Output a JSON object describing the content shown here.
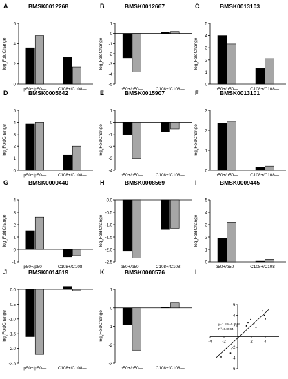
{
  "chart_data": [
    {
      "letter": "A",
      "type": "bar",
      "title": "BMSK0012268",
      "ylabel": "log2FoldChange",
      "categories": [
        "p50+/p50—",
        "C108+/C108—"
      ],
      "series": [
        {
          "values": [
            3.6,
            4.8
          ]
        },
        {
          "values": [
            2.65,
            1.7
          ]
        }
      ],
      "ylim": [
        0,
        6
      ],
      "yticks": [
        0,
        2,
        4,
        6
      ],
      "grid": false
    },
    {
      "letter": "B",
      "type": "bar",
      "title": "BMSK0012667",
      "ylabel": "log2FoldChange",
      "categories": [
        "p50+/p50—",
        "C108+/C108—"
      ],
      "series": [
        {
          "values": [
            -2.4,
            -3.8
          ]
        },
        {
          "values": [
            0.15,
            0.2
          ]
        }
      ],
      "ylim": [
        -5,
        1
      ],
      "yticks": [
        1,
        0,
        -1,
        -2,
        -3,
        -4,
        -5
      ],
      "grid": false
    },
    {
      "letter": "C",
      "type": "bar",
      "title": "BMSK0013103",
      "ylabel": "log2FoldChange",
      "categories": [
        "p50+/p50—",
        "C108+/C108—"
      ],
      "series": [
        {
          "values": [
            4.0,
            3.3
          ]
        },
        {
          "values": [
            1.3,
            2.1
          ]
        }
      ],
      "ylim": [
        0,
        5
      ],
      "yticks": [
        0,
        1,
        2,
        3,
        4,
        5
      ],
      "grid": false
    },
    {
      "letter": "D",
      "type": "bar",
      "title": "BMSK0005642",
      "ylabel": "log2FoldChange",
      "categories": [
        "p50+/p50—",
        "C108+/C108—"
      ],
      "series": [
        {
          "values": [
            3.85,
            4.0
          ]
        },
        {
          "values": [
            1.25,
            2.0
          ]
        }
      ],
      "ylim": [
        0,
        5
      ],
      "yticks": [
        0,
        1,
        2,
        3,
        4,
        5
      ],
      "grid": false
    },
    {
      "letter": "E",
      "type": "bar",
      "title": "BMSK0015907",
      "ylabel": "log2FoldChange",
      "categories": [
        "p50+/p50—",
        "C108+/C108—"
      ],
      "series": [
        {
          "values": [
            -1.05,
            -3.05
          ]
        },
        {
          "values": [
            -0.8,
            -0.55
          ]
        }
      ],
      "ylim": [
        -4,
        1
      ],
      "yticks": [
        1,
        0,
        -1,
        -2,
        -3,
        -4
      ],
      "grid": false
    },
    {
      "letter": "F",
      "type": "bar",
      "title": "BMSK0013101",
      "ylabel": "log2FoldChange",
      "categories": [
        "p50+/p50—",
        "C108+/C108—"
      ],
      "series": [
        {
          "values": [
            2.35,
            2.45
          ]
        },
        {
          "values": [
            0.15,
            0.2
          ]
        }
      ],
      "ylim": [
        0,
        3
      ],
      "yticks": [
        0,
        1,
        2,
        3
      ],
      "grid": false
    },
    {
      "letter": "G",
      "type": "bar",
      "title": "BMSK0000440",
      "ylabel": "log2FoldChange",
      "categories": [
        "p50+/p50—",
        "C108+/C108—"
      ],
      "series": [
        {
          "values": [
            1.5,
            2.6
          ]
        },
        {
          "values": [
            -0.6,
            -0.5
          ]
        }
      ],
      "ylim": [
        -1,
        4
      ],
      "yticks": [
        -1,
        0,
        1,
        2,
        3,
        4
      ],
      "grid": false
    },
    {
      "letter": "H",
      "type": "bar",
      "title": "BMSK0008569",
      "ylabel": "log2FoldChange",
      "categories": [
        "p50+/p50—",
        "C108+/C108—"
      ],
      "series": [
        {
          "values": [
            -2.05,
            -2.35
          ]
        },
        {
          "values": [
            -1.2,
            -1.15
          ]
        }
      ],
      "ylim": [
        -2.5,
        0
      ],
      "yticks": [
        0,
        -0.5,
        -1.0,
        -1.5,
        -2.0,
        -2.5
      ],
      "grid": false
    },
    {
      "letter": "I",
      "type": "bar",
      "title": "BMSK0009445",
      "ylabel": "log2FoldChange",
      "categories": [
        "p50+/p50—",
        "C108+/C108—"
      ],
      "series": [
        {
          "values": [
            1.9,
            3.2
          ]
        },
        {
          "values": [
            0.05,
            0.2
          ]
        }
      ],
      "ylim": [
        0,
        5
      ],
      "yticks": [
        0,
        1,
        2,
        3,
        4,
        5
      ],
      "grid": false
    },
    {
      "letter": "J",
      "type": "bar",
      "title": "BMSK0014619",
      "ylabel": "log2FoldChange",
      "categories": [
        "p50+/p50—",
        "C108+/C108—"
      ],
      "series": [
        {
          "values": [
            -1.6,
            -2.2
          ]
        },
        {
          "values": [
            0.1,
            -0.05
          ]
        }
      ],
      "ylim": [
        -2.5,
        0
      ],
      "yticks": [
        0,
        -0.5,
        -1.0,
        -1.5,
        -2.0,
        -2.5
      ],
      "grid": false
    },
    {
      "letter": "K",
      "type": "bar",
      "title": "BMSK0000576",
      "ylabel": "log2FoldChange",
      "categories": [
        "p50+/p50—",
        "C108+/C108—"
      ],
      "series": [
        {
          "values": [
            -0.9,
            -2.3
          ]
        },
        {
          "values": [
            0.05,
            0.3
          ]
        }
      ],
      "ylim": [
        -3,
        1
      ],
      "yticks": [
        1,
        0,
        -1,
        -2,
        -3
      ],
      "grid": false
    },
    {
      "letter": "L",
      "type": "scatter",
      "title": "",
      "annotation": [
        "y=1.18x-0.2509",
        "R²=0.8964"
      ],
      "fit": {
        "slope": 1.18,
        "intercept": -0.2509
      },
      "xlim": [
        -4,
        6
      ],
      "ylim": [
        -6,
        6
      ],
      "xticks": [
        -4,
        -2,
        2,
        4
      ],
      "yticks": [
        6,
        4,
        2,
        -2,
        -4,
        -6
      ],
      "points": [
        [
          -2.4,
          -3.8
        ],
        [
          -1.05,
          -3.05
        ],
        [
          -0.9,
          -2.3
        ],
        [
          -1.6,
          -2.2
        ],
        [
          1.5,
          2.6
        ],
        [
          1.9,
          3.2
        ],
        [
          2.35,
          2.45
        ],
        [
          3.6,
          4.8
        ],
        [
          3.85,
          4.0
        ],
        [
          4.0,
          3.3
        ],
        [
          1.3,
          2.1
        ],
        [
          1.25,
          2.0
        ],
        [
          2.65,
          1.7
        ]
      ]
    }
  ],
  "colors": {
    "series1": "#000000",
    "series2": "#a6a6a6"
  }
}
